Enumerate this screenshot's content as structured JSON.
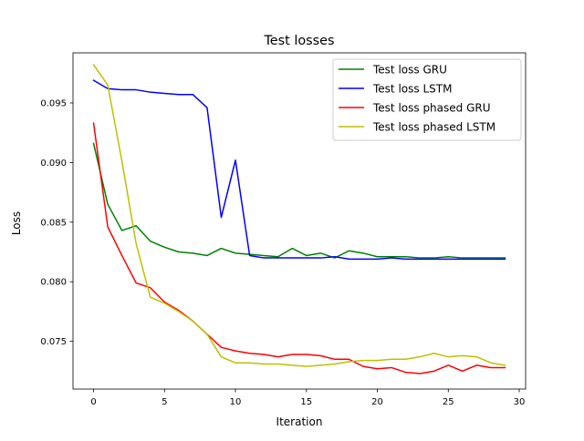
{
  "chart_data": {
    "type": "line",
    "title": "Test losses",
    "xlabel": "Iteration",
    "ylabel": "Loss",
    "xlim": [
      -1.45,
      30.45
    ],
    "ylim": [
      0.071,
      0.0992
    ],
    "xticks": [
      0,
      5,
      10,
      15,
      20,
      25,
      30
    ],
    "yticks": [
      0.075,
      0.08,
      0.085,
      0.09,
      0.095
    ],
    "grid": false,
    "legend_position": "top-right",
    "x": [
      0,
      1,
      2,
      3,
      4,
      5,
      6,
      7,
      8,
      9,
      10,
      11,
      12,
      13,
      14,
      15,
      16,
      17,
      18,
      19,
      20,
      21,
      22,
      23,
      24,
      25,
      26,
      27,
      28,
      29
    ],
    "series": [
      {
        "name": "Test loss GRU",
        "color": "#008000",
        "values": [
          0.0916,
          0.0865,
          0.0843,
          0.0847,
          0.0834,
          0.0829,
          0.0825,
          0.0824,
          0.0822,
          0.0828,
          0.0824,
          0.0823,
          0.0822,
          0.0821,
          0.0828,
          0.0822,
          0.0824,
          0.082,
          0.0826,
          0.0824,
          0.0821,
          0.0821,
          0.0821,
          0.082,
          0.082,
          0.0821,
          0.082,
          0.082,
          0.082,
          0.082
        ]
      },
      {
        "name": "Test loss LSTM",
        "color": "#0000ff",
        "values": [
          0.0969,
          0.0962,
          0.0961,
          0.0961,
          0.0959,
          0.0958,
          0.0957,
          0.0957,
          0.0946,
          0.0854,
          0.0902,
          0.0822,
          0.082,
          0.082,
          0.082,
          0.082,
          0.082,
          0.0821,
          0.0819,
          0.0819,
          0.0819,
          0.082,
          0.0819,
          0.0819,
          0.0819,
          0.0819,
          0.0819,
          0.0819,
          0.0819,
          0.0819
        ]
      },
      {
        "name": "Test loss phased GRU",
        "color": "#ff0000",
        "values": [
          0.0933,
          0.0846,
          0.0822,
          0.0799,
          0.0795,
          0.0783,
          0.0776,
          0.0767,
          0.0756,
          0.0745,
          0.0742,
          0.074,
          0.0739,
          0.0737,
          0.0739,
          0.0739,
          0.0738,
          0.0735,
          0.0735,
          0.0729,
          0.0727,
          0.0728,
          0.0724,
          0.0723,
          0.0725,
          0.073,
          0.0725,
          0.073,
          0.0728,
          0.0728
        ]
      },
      {
        "name": "Test loss phased LSTM",
        "color": "#bfbf00",
        "values": [
          0.0982,
          0.0965,
          0.0901,
          0.0832,
          0.0787,
          0.0782,
          0.0775,
          0.0767,
          0.0756,
          0.0737,
          0.0732,
          0.0732,
          0.0731,
          0.0731,
          0.073,
          0.0729,
          0.073,
          0.0731,
          0.0733,
          0.0734,
          0.0734,
          0.0735,
          0.0735,
          0.0737,
          0.074,
          0.0737,
          0.0738,
          0.0737,
          0.0732,
          0.073
        ]
      }
    ]
  }
}
